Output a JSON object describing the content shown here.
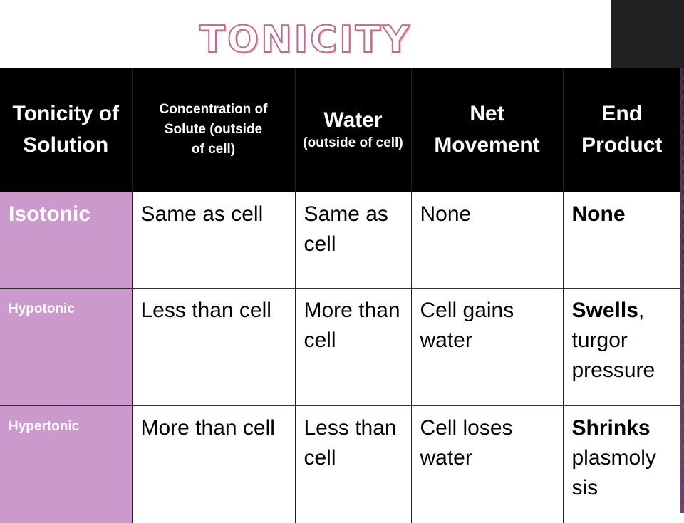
{
  "slide": {
    "title": "TONICITY",
    "accent_color": "#cc99cc",
    "strip_color": "#7a2f6e"
  },
  "table": {
    "headers": {
      "col1": "Tonicity of Solution",
      "col2_line1": "Concentration of",
      "col2_line2": "Solute (outside",
      "col2_line3": "of cell)",
      "col3_main": "Water",
      "col3_sub": "(outside of cell)",
      "col4": "Net Movement",
      "col5": "End Product"
    },
    "rows": [
      {
        "tonicity": "Isotonic",
        "solute": "Same as cell",
        "water": "Same as cell",
        "net": "None",
        "end_bold": "None",
        "end_rest": ""
      },
      {
        "tonicity": "Hypotonic",
        "solute": "Less than cell",
        "water": "More than cell",
        "net": "Cell gains water",
        "end_bold": "Swells",
        "end_rest": ", turgor pressure"
      },
      {
        "tonicity": "Hypertonic",
        "solute": "More than cell",
        "water": "Less than cell",
        "net": "Cell loses water",
        "end_bold": "Shrinks",
        "end_rest": " plasmoly sis"
      }
    ]
  }
}
